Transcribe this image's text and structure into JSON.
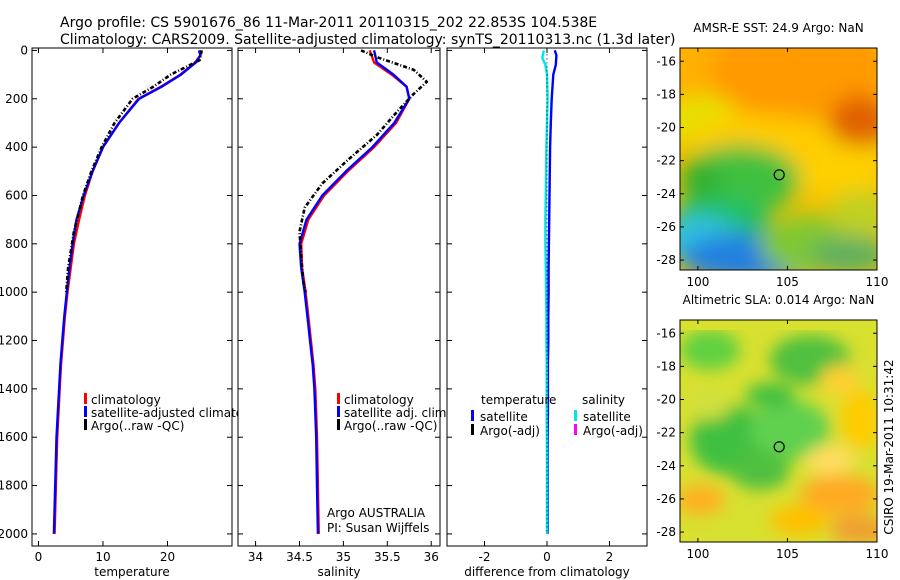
{
  "header": {
    "line1": "Argo profile: CS 5901676_86 11-Mar-2011 20110315_202 22.853S 104.538E",
    "line2": "Climatology: CARS2009. Satellite-adjusted climatology: synTS_20110313.nc (1.3d later)"
  },
  "side_stamp": "CSIRO 19-Mar-2011 10:31:42",
  "colors": {
    "climatology": "#ff0000",
    "satellite": "#0000ff",
    "argo": "#000000",
    "diff_sat_salinity": "#00e5e5",
    "diff_argo_salinity": "#ff00ff"
  },
  "chart_data": [
    {
      "id": "temperature",
      "type": "line",
      "xlabel": "temperature",
      "xlim": [
        -1,
        30
      ],
      "xticks": [
        0,
        10,
        20
      ],
      "ylim": [
        2050,
        -10
      ],
      "yticks": [
        0,
        200,
        400,
        600,
        800,
        1000,
        1200,
        1400,
        1600,
        1800,
        2000
      ],
      "legend": [
        "climatology",
        "satellite-adjusted climatology",
        "Argo(..raw -QC)"
      ],
      "series": [
        {
          "name": "climatology",
          "color": "#ff0000",
          "x": [
            24.9,
            25.1,
            24.3,
            22.0,
            19.0,
            15.5,
            12.5,
            10.0,
            8.4,
            7.2,
            6.3,
            5.5,
            5.0,
            4.5,
            4.1,
            3.8,
            3.5,
            3.3,
            3.1,
            2.9,
            2.7,
            2.5
          ],
          "y": [
            0,
            20,
            50,
            100,
            150,
            200,
            300,
            400,
            500,
            600,
            700,
            800,
            900,
            1000,
            1100,
            1200,
            1300,
            1400,
            1500,
            1600,
            1800,
            2000
          ]
        },
        {
          "name": "satellite-adjusted climatology",
          "color": "#0000ff",
          "x": [
            24.9,
            25.1,
            24.4,
            22.1,
            19.1,
            15.6,
            12.5,
            10.0,
            8.4,
            7.0,
            5.9,
            5.3,
            4.8,
            4.4,
            4.0,
            3.7,
            3.4,
            3.2,
            3.0,
            2.8,
            2.6,
            2.4
          ],
          "y": [
            0,
            20,
            50,
            100,
            150,
            200,
            300,
            400,
            500,
            600,
            700,
            800,
            900,
            1000,
            1100,
            1200,
            1300,
            1400,
            1500,
            1600,
            1800,
            2000
          ]
        },
        {
          "name": "Argo(..raw -QC)",
          "color": "#000000",
          "dashed": true,
          "x": [
            25.3,
            25.0,
            23.5,
            20.5,
            17.8,
            14.6,
            11.8,
            9.8,
            8.2,
            6.9,
            5.5,
            4.6,
            4.3
          ],
          "y": [
            0,
            40,
            60,
            100,
            150,
            200,
            300,
            400,
            500,
            600,
            750,
            900,
            1000
          ]
        }
      ]
    },
    {
      "id": "salinity",
      "type": "line",
      "xlabel": "salinity",
      "xlim": [
        33.8,
        36.1
      ],
      "xticks": [
        34,
        34.5,
        35,
        35.5,
        36
      ],
      "ylim": [
        2050,
        -10
      ],
      "yticks": [
        0,
        200,
        400,
        600,
        800,
        1000,
        1200,
        1400,
        1600,
        1800,
        2000
      ],
      "legend": [
        "climatology",
        "satellite adj. clim.",
        "Argo(..raw -QC)"
      ],
      "annotation": [
        "Argo AUSTRALIA",
        "PI: Susan Wijffels"
      ],
      "series": [
        {
          "name": "climatology",
          "color": "#ff0000",
          "x": [
            35.3,
            35.35,
            35.55,
            35.72,
            35.75,
            35.6,
            35.35,
            35.05,
            34.78,
            34.6,
            34.52,
            34.53,
            34.57,
            34.6,
            34.63,
            34.66,
            34.68,
            34.69,
            34.7,
            34.71,
            34.72
          ],
          "y": [
            0,
            50,
            100,
            150,
            200,
            300,
            400,
            500,
            600,
            700,
            800,
            900,
            1000,
            1100,
            1200,
            1300,
            1400,
            1500,
            1600,
            1800,
            2000
          ]
        },
        {
          "name": "satellite adj. clim.",
          "color": "#0000ff",
          "x": [
            35.35,
            35.38,
            35.57,
            35.72,
            35.75,
            35.58,
            35.33,
            35.03,
            34.76,
            34.58,
            34.5,
            34.52,
            34.56,
            34.59,
            34.62,
            34.65,
            34.67,
            34.68,
            34.69,
            34.7,
            34.71
          ],
          "y": [
            0,
            50,
            100,
            150,
            200,
            300,
            400,
            500,
            600,
            700,
            800,
            900,
            1000,
            1100,
            1200,
            1300,
            1400,
            1500,
            1600,
            1800,
            2000
          ]
        },
        {
          "name": "Argo(..raw -QC)",
          "color": "#000000",
          "dashed": true,
          "x": [
            35.2,
            35.4,
            35.8,
            35.95,
            35.8,
            35.62,
            35.38,
            35.06,
            34.76,
            34.56,
            34.5,
            34.52,
            34.54,
            34.57
          ],
          "y": [
            0,
            30,
            80,
            130,
            180,
            250,
            350,
            450,
            550,
            650,
            750,
            850,
            950,
            1000
          ]
        }
      ]
    },
    {
      "id": "difference",
      "type": "line",
      "xlabel": "difference from climatology",
      "xlim": [
        -3.2,
        3.2
      ],
      "xticks": [
        -2,
        0,
        2
      ],
      "ylim": [
        2050,
        -10
      ],
      "yticks": [
        0,
        200,
        400,
        600,
        800,
        1000,
        1200,
        1400,
        1600,
        1800,
        2000
      ],
      "legend_groups": [
        {
          "title": "temperature",
          "items": [
            "satellite",
            "Argo(-adj)"
          ]
        },
        {
          "title": "salinity",
          "items": [
            "satellite",
            "Argo(-adj)"
          ]
        }
      ],
      "series": [
        {
          "name": "temperature satellite",
          "color": "#0000ff",
          "x": [
            0.25,
            0.3,
            0.28,
            0.2,
            0.15,
            0.12,
            0.1,
            0.09,
            0.08,
            0.07,
            0.06,
            0.05,
            0.05,
            0.04,
            0.04,
            0.03,
            0.03,
            0.03,
            0.02,
            0.02,
            0.02,
            0.02
          ],
          "y": [
            0,
            20,
            60,
            100,
            200,
            300,
            400,
            500,
            600,
            700,
            800,
            900,
            1000,
            1100,
            1200,
            1300,
            1400,
            1500,
            1600,
            1700,
            1800,
            2000
          ]
        },
        {
          "name": "salinity satellite",
          "color": "#00e5e5",
          "x": [
            -0.1,
            -0.15,
            -0.05,
            0.0,
            0.02,
            0.0,
            -0.02,
            -0.03,
            -0.04,
            -0.05,
            -0.05,
            -0.04,
            -0.03,
            -0.02,
            -0.02,
            -0.01,
            -0.01,
            -0.01,
            0.0,
            0.0
          ],
          "y": [
            0,
            30,
            60,
            100,
            200,
            300,
            400,
            500,
            600,
            700,
            800,
            900,
            1000,
            1100,
            1200,
            1300,
            1400,
            1500,
            1700,
            2000
          ]
        },
        {
          "name": "temperature Argo(-adj)",
          "color": "#000000",
          "dotted": true,
          "x": [
            0,
            0
          ],
          "y": [
            0,
            2000
          ]
        }
      ]
    },
    {
      "id": "sst_map",
      "type": "heatmap",
      "title": "AMSR-E SST: 24.9 Argo: NaN",
      "xlim": [
        99,
        110
      ],
      "ylim": [
        -28.6,
        -15.2
      ],
      "xticks": [
        100,
        105,
        110
      ],
      "yticks": [
        -16,
        -18,
        -20,
        -22,
        -24,
        -26,
        -28
      ],
      "marker": {
        "lon": 104.538,
        "lat": -22.853
      }
    },
    {
      "id": "sla_map",
      "type": "heatmap",
      "title": "Altimetric SLA: 0.014 Argo: NaN",
      "xlim": [
        99,
        110
      ],
      "ylim": [
        -28.6,
        -15.2
      ],
      "xticks": [
        100,
        105,
        110
      ],
      "yticks": [
        -16,
        -18,
        -20,
        -22,
        -24,
        -26,
        -28
      ],
      "marker": {
        "lon": 104.538,
        "lat": -22.853
      }
    }
  ]
}
